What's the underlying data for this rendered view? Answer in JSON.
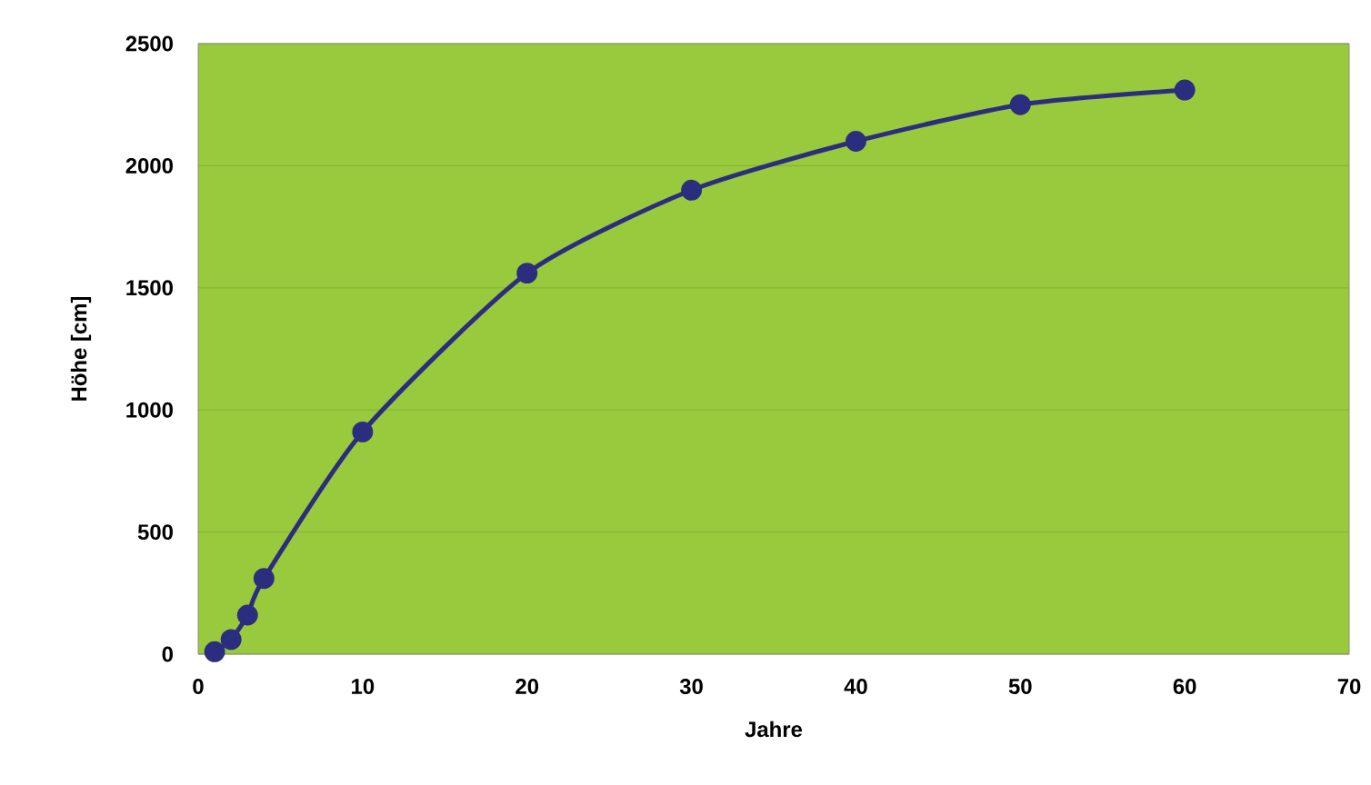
{
  "chart_data": {
    "type": "line",
    "xlabel": "Jahre",
    "ylabel": "Höhe [cm]",
    "x": [
      1,
      2,
      3,
      4,
      10,
      20,
      30,
      40,
      50,
      60
    ],
    "series": [
      {
        "color": "#2b2d7e",
        "values": [
          10,
          60,
          160,
          310,
          910,
          1560,
          1900,
          2100,
          2250,
          2310
        ]
      }
    ],
    "xlim": [
      0,
      70
    ],
    "xticks": [
      0,
      10,
      20,
      30,
      40,
      50,
      60,
      70
    ],
    "ylim": [
      0,
      2500
    ],
    "yticks": [
      0,
      500,
      1000,
      1500,
      2000,
      2500
    ],
    "grid": "y",
    "marker": "circle",
    "line_style": "solid"
  }
}
